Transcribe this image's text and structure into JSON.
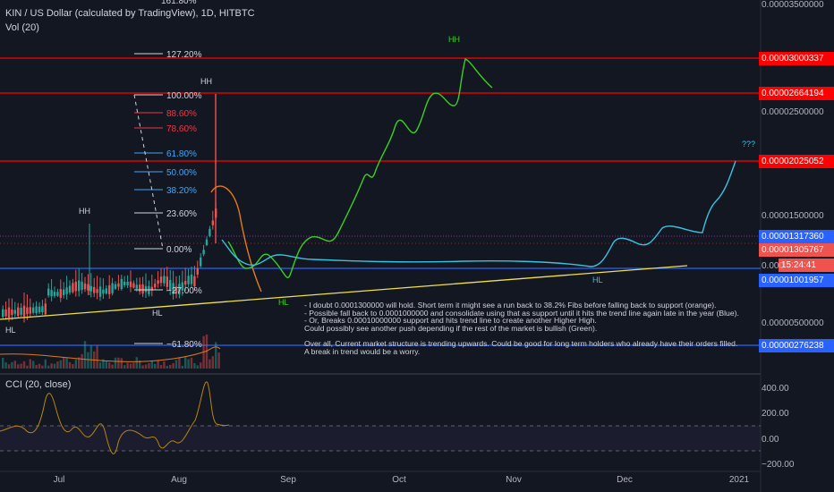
{
  "header": {
    "title": "KIN / US Dollar (calculated by TradingView), 1D, HITBTC",
    "vol": "Vol (20)",
    "cci": "CCI (20, close)"
  },
  "price_axis": {
    "ticks": [
      "0.00003500000",
      "0.00002500000",
      "0.00001500000",
      "0.00000500000"
    ],
    "tick_top": "161.80%",
    "labels": [
      {
        "text": "0.00003000337",
        "color": "#ff0000"
      },
      {
        "text": "0.00002664194",
        "color": "#ff0000"
      },
      {
        "text": "0.00002025052",
        "color": "#ff0000"
      },
      {
        "text": "0.00001317360",
        "color": "#2962ff"
      },
      {
        "text": "0.00001305767",
        "color": "#ef5350"
      },
      {
        "text": "15:24:41",
        "color": "#ef5350"
      },
      {
        "text": "0.00001001957",
        "color": "#2962ff"
      },
      {
        "text": "0.00000276238",
        "color": "#2962ff"
      }
    ],
    "current_price_short": "0.000"
  },
  "cci_axis": {
    "ticks": [
      "400.00",
      "200.00",
      "0.00",
      "−200.00"
    ]
  },
  "time_axis": {
    "ticks": [
      "Jul",
      "Aug",
      "Sep",
      "Oct",
      "Nov",
      "Dec",
      "2021"
    ]
  },
  "fib": {
    "levels": [
      "127.20%",
      "100.00%",
      "88.60%",
      "78.60%",
      "61.80%",
      "50.00%",
      "38.20%",
      "23.60%",
      "0.00%",
      "−27.00%",
      "−61.80%"
    ],
    "colors": {
      "neutral": "#d1d4dc",
      "red": "#f23645",
      "blue": "#42a5f5"
    }
  },
  "annotations": {
    "hh1": "HH",
    "hh2": "HH",
    "hh3": "HH",
    "hl1": "HL",
    "hl2": "HL",
    "hl3": "HL",
    "hl4": "HL",
    "question": "???"
  },
  "note_lines": [
    "- I doubt 0.0001300000 will hold. Short term it might see a run back to 38.2% Fibs before falling back to support (orange).",
    "- Possible fall back to 0.0001000000 and consolidate using that as support until it hits the trend line again late in the year (Blue).",
    "- Or, Breaks 0.00010000000 support and hits trend line to create another Higher High.",
    "Could possibly see another push depending if the rest of the market is bullish (Green).",
    "",
    "Over all, Current market structure is trending upwards. Could be good for long term holders who already have their orders filled.",
    "A break in trend would be a worry."
  ],
  "chart_data": {
    "type": "line",
    "title": "KIN / US Dollar (calculated by TradingView), 1D, HITBTC",
    "horizontal_levels": [
      3.000337e-05,
      2.664194e-05,
      2.025052e-05,
      1.31736e-05,
      1.001957e-05,
      2.76238e-06
    ],
    "ylim": [
      0,
      3.6e-05
    ],
    "colors": {
      "up": "#26a69a",
      "down": "#ef5350",
      "green_path": "#3bd11f",
      "orange_path": "#e07b1a",
      "blue_path": "#38c3e0",
      "trend": "#f0e04b"
    }
  }
}
